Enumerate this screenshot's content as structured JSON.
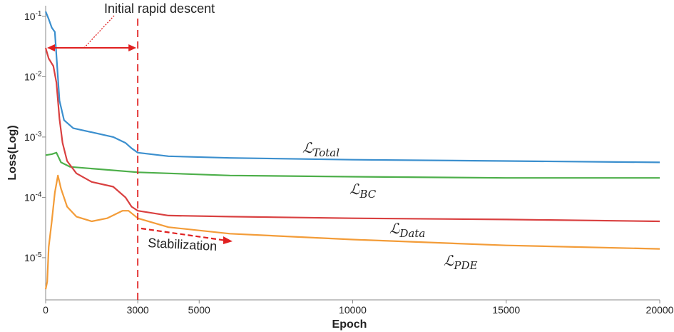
{
  "chart_data": {
    "type": "line",
    "ylabel": "Loss(Log)",
    "xlabel": "Epoch",
    "xlim": [
      0,
      20000
    ],
    "ylim_log": [
      2e-06,
      0.15
    ],
    "yscale": "log",
    "x_ticks": [
      {
        "value": 0,
        "label": "0"
      },
      {
        "value": 3000,
        "label": "3000"
      },
      {
        "value": 5000,
        "label": "5000"
      },
      {
        "value": 10000,
        "label": "10000"
      },
      {
        "value": 15000,
        "label": "15000"
      },
      {
        "value": 20000,
        "label": "20000"
      }
    ],
    "y_ticks": [
      {
        "value": 0.1,
        "base": "10",
        "exp": "-1"
      },
      {
        "value": 0.01,
        "base": "10",
        "exp": "-2"
      },
      {
        "value": 0.001,
        "base": "10",
        "exp": "-3"
      },
      {
        "value": 0.0001,
        "base": "10",
        "exp": "-4"
      },
      {
        "value": 1e-05,
        "base": "10",
        "exp": "-5"
      }
    ],
    "series": [
      {
        "name": "Total",
        "symbol": "ℒ",
        "subscript": "Total",
        "color": "#3b8fce",
        "x": [
          0,
          100,
          200,
          300,
          450,
          600,
          900,
          1500,
          2200,
          2600,
          2800,
          3000,
          4000,
          6000,
          10000,
          15000,
          20000
        ],
        "y": [
          0.12,
          0.09,
          0.065,
          0.055,
          0.004,
          0.0019,
          0.0014,
          0.0012,
          0.001,
          0.0008,
          0.00065,
          0.00055,
          0.00048,
          0.00045,
          0.00042,
          0.0004,
          0.00038
        ]
      },
      {
        "name": "BC",
        "symbol": "ℒ",
        "subscript": "BC",
        "color": "#4daf4a",
        "x": [
          0,
          200,
          350,
          500,
          800,
          1500,
          3000,
          6000,
          10000,
          15000,
          20000
        ],
        "y": [
          0.0005,
          0.00052,
          0.00055,
          0.00038,
          0.00032,
          0.0003,
          0.00026,
          0.00023,
          0.00022,
          0.00021,
          0.00021
        ]
      },
      {
        "name": "Data",
        "symbol": "ℒ",
        "subscript": "Data",
        "color": "#d94040",
        "x": [
          0,
          100,
          250,
          350,
          450,
          550,
          700,
          1000,
          1500,
          2200,
          2600,
          2800,
          3000,
          4000,
          6000,
          10000,
          15000,
          20000
        ],
        "y": [
          0.03,
          0.02,
          0.015,
          0.008,
          0.002,
          0.0008,
          0.0004,
          0.00025,
          0.00018,
          0.00015,
          0.0001,
          7e-05,
          6e-05,
          5e-05,
          4.8e-05,
          4.5e-05,
          4.3e-05,
          4e-05
        ]
      },
      {
        "name": "PDE",
        "symbol": "ℒ",
        "subscript": "PDE",
        "color": "#f39c38",
        "x": [
          0,
          50,
          100,
          200,
          300,
          400,
          500,
          700,
          1000,
          1500,
          2000,
          2500,
          2700,
          3000,
          4000,
          6000,
          10000,
          15000,
          20000
        ],
        "y": [
          3e-06,
          4e-06,
          1.5e-05,
          4e-05,
          0.00012,
          0.00023,
          0.00014,
          7e-05,
          4.8e-05,
          4e-05,
          4.5e-05,
          6e-05,
          6e-05,
          4.5e-05,
          3.2e-05,
          2.5e-05,
          2e-05,
          1.6e-05,
          1.4e-05
        ]
      }
    ],
    "annotations": {
      "rapid_descent": {
        "text": "Initial rapid descent",
        "from_epoch": 0,
        "to_epoch": 3000
      },
      "stabilization": {
        "text": "Stabilization"
      },
      "vline_epoch": 3000
    }
  }
}
